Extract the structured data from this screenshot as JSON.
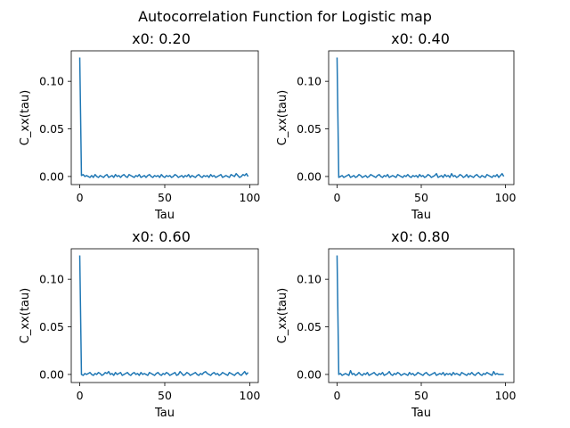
{
  "figure": {
    "suptitle": "Autocorrelation Function for Logistic map"
  },
  "chart_data": [
    {
      "type": "line",
      "title": "x0: 0.20",
      "xlabel": "Tau",
      "ylabel": "C_xx(tau)",
      "xlim": [
        -5,
        105
      ],
      "ylim": [
        -0.0085,
        0.132
      ],
      "xticks": [
        0,
        50,
        100
      ],
      "xtick_labels": [
        "0",
        "50",
        "100"
      ],
      "yticks": [
        0.0,
        0.05,
        0.1
      ],
      "ytick_labels": [
        "0.00",
        "0.05",
        "0.10"
      ],
      "grid": false,
      "series_color": "#1f77b4",
      "series": [
        {
          "x": [
            0,
            1,
            2,
            3,
            4,
            5,
            6,
            7,
            8,
            9,
            10,
            11,
            12,
            13,
            14,
            15,
            16,
            17,
            18,
            19,
            20,
            21,
            22,
            23,
            24,
            25,
            26,
            27,
            28,
            29,
            30,
            31,
            32,
            33,
            34,
            35,
            36,
            37,
            38,
            39,
            40,
            41,
            42,
            43,
            44,
            45,
            46,
            47,
            48,
            49,
            50,
            51,
            52,
            53,
            54,
            55,
            56,
            57,
            58,
            59,
            60,
            61,
            62,
            63,
            64,
            65,
            66,
            67,
            68,
            69,
            70,
            71,
            72,
            73,
            74,
            75,
            76,
            77,
            78,
            79,
            80,
            81,
            82,
            83,
            84,
            85,
            86,
            87,
            88,
            89,
            90,
            91,
            92,
            93,
            94,
            95,
            96,
            97,
            98,
            99
          ],
          "values": [
            0.125,
            0.001,
            0.002,
            0.0,
            0.001,
            0.0,
            -0.001,
            0.001,
            -0.001,
            0.002,
            0.0,
            -0.001,
            0.001,
            0.0,
            -0.001,
            0.001,
            0.002,
            -0.001,
            0.0,
            0.001,
            -0.001,
            0.002,
            0.0,
            0.001,
            -0.001,
            0.001,
            0.002,
            0.0,
            -0.001,
            0.002,
            0.001,
            0.0,
            -0.001,
            0.001,
            0.0,
            0.002,
            -0.001,
            0.0,
            0.001,
            -0.001,
            0.001,
            0.002,
            0.0,
            -0.001,
            0.001,
            0.0,
            0.001,
            -0.001,
            0.002,
            0.0,
            -0.001,
            0.001,
            0.0,
            0.001,
            -0.001,
            0.0,
            0.002,
            0.001,
            -0.001,
            0.0,
            0.001,
            -0.001,
            0.001,
            0.0,
            0.002,
            -0.001,
            0.001,
            0.0,
            -0.001,
            0.001,
            0.002,
            0.0,
            -0.001,
            0.001,
            0.0,
            0.001,
            -0.001,
            0.002,
            0.0,
            0.001,
            -0.001,
            0.0,
            0.001,
            0.002,
            -0.001,
            0.0,
            0.001,
            0.0,
            -0.001,
            0.002,
            0.001,
            0.0,
            0.003,
            0.001,
            -0.001,
            0.0,
            0.002,
            0.001,
            0.003,
            0.0
          ]
        }
      ]
    },
    {
      "type": "line",
      "title": "x0: 0.40",
      "xlabel": "Tau",
      "ylabel": "C_xx(tau)",
      "xlim": [
        -5,
        105
      ],
      "ylim": [
        -0.0085,
        0.132
      ],
      "xticks": [
        0,
        50,
        100
      ],
      "xtick_labels": [
        "0",
        "50",
        "100"
      ],
      "yticks": [
        0.0,
        0.05,
        0.1
      ],
      "ytick_labels": [
        "0.00",
        "0.05",
        "0.10"
      ],
      "grid": false,
      "series_color": "#1f77b4",
      "series": [
        {
          "x": [
            0,
            1,
            2,
            3,
            4,
            5,
            6,
            7,
            8,
            9,
            10,
            11,
            12,
            13,
            14,
            15,
            16,
            17,
            18,
            19,
            20,
            21,
            22,
            23,
            24,
            25,
            26,
            27,
            28,
            29,
            30,
            31,
            32,
            33,
            34,
            35,
            36,
            37,
            38,
            39,
            40,
            41,
            42,
            43,
            44,
            45,
            46,
            47,
            48,
            49,
            50,
            51,
            52,
            53,
            54,
            55,
            56,
            57,
            58,
            59,
            60,
            61,
            62,
            63,
            64,
            65,
            66,
            67,
            68,
            69,
            70,
            71,
            72,
            73,
            74,
            75,
            76,
            77,
            78,
            79,
            80,
            81,
            82,
            83,
            84,
            85,
            86,
            87,
            88,
            89,
            90,
            91,
            92,
            93,
            94,
            95,
            96,
            97,
            98,
            99
          ],
          "values": [
            0.125,
            -0.001,
            0.0,
            0.001,
            -0.001,
            0.0,
            0.001,
            0.002,
            -0.001,
            0.0,
            0.001,
            -0.001,
            0.0,
            0.002,
            0.001,
            -0.001,
            0.0,
            0.001,
            -0.001,
            0.0,
            0.002,
            0.001,
            0.0,
            -0.001,
            0.001,
            0.002,
            0.0,
            -0.001,
            0.001,
            0.0,
            0.002,
            -0.001,
            0.0,
            0.001,
            0.0,
            -0.001,
            0.002,
            0.001,
            0.0,
            -0.001,
            0.001,
            0.0,
            0.002,
            0.0,
            -0.001,
            0.001,
            0.0,
            0.001,
            -0.001,
            0.002,
            0.0,
            0.001,
            -0.001,
            0.0,
            0.002,
            0.001,
            -0.001,
            0.0,
            0.001,
            0.003,
            -0.001,
            0.0,
            0.001,
            -0.001,
            0.002,
            0.0,
            0.001,
            -0.001,
            0.003,
            0.0,
            0.001,
            -0.001,
            0.0,
            0.002,
            0.001,
            -0.001,
            0.0,
            0.002,
            -0.001,
            0.001,
            0.0,
            -0.001,
            0.001,
            0.002,
            0.0,
            -0.001,
            0.001,
            0.0,
            -0.001,
            0.002,
            0.001,
            0.0,
            -0.001,
            0.001,
            0.0,
            0.002,
            -0.001,
            0.001,
            0.003,
            0.0
          ]
        }
      ]
    },
    {
      "type": "line",
      "title": "x0: 0.60",
      "xlabel": "Tau",
      "ylabel": "C_xx(tau)",
      "xlim": [
        -5,
        105
      ],
      "ylim": [
        -0.0085,
        0.132
      ],
      "xticks": [
        0,
        50,
        100
      ],
      "xtick_labels": [
        "0",
        "50",
        "100"
      ],
      "yticks": [
        0.0,
        0.05,
        0.1
      ],
      "ytick_labels": [
        "0.00",
        "0.05",
        "0.10"
      ],
      "grid": false,
      "series_color": "#1f77b4",
      "series": [
        {
          "x": [
            0,
            1,
            2,
            3,
            4,
            5,
            6,
            7,
            8,
            9,
            10,
            11,
            12,
            13,
            14,
            15,
            16,
            17,
            18,
            19,
            20,
            21,
            22,
            23,
            24,
            25,
            26,
            27,
            28,
            29,
            30,
            31,
            32,
            33,
            34,
            35,
            36,
            37,
            38,
            39,
            40,
            41,
            42,
            43,
            44,
            45,
            46,
            47,
            48,
            49,
            50,
            51,
            52,
            53,
            54,
            55,
            56,
            57,
            58,
            59,
            60,
            61,
            62,
            63,
            64,
            65,
            66,
            67,
            68,
            69,
            70,
            71,
            72,
            73,
            74,
            75,
            76,
            77,
            78,
            79,
            80,
            81,
            82,
            83,
            84,
            85,
            86,
            87,
            88,
            89,
            90,
            91,
            92,
            93,
            94,
            95,
            96,
            97,
            98,
            99
          ],
          "values": [
            0.125,
            0.0,
            -0.001,
            0.001,
            0.0,
            0.001,
            0.002,
            0.0,
            -0.001,
            0.001,
            0.0,
            0.002,
            0.001,
            -0.001,
            0.0,
            0.002,
            0.001,
            0.003,
            0.0,
            0.001,
            -0.001,
            0.002,
            0.0,
            0.001,
            0.002,
            -0.001,
            0.0,
            0.001,
            0.002,
            0.0,
            -0.001,
            0.001,
            0.002,
            0.0,
            0.001,
            -0.001,
            0.002,
            0.0,
            0.001,
            0.0,
            -0.001,
            0.002,
            0.001,
            0.0,
            -0.001,
            0.001,
            0.002,
            0.0,
            -0.001,
            0.001,
            0.0,
            0.002,
            0.001,
            -0.001,
            0.0,
            0.001,
            0.002,
            -0.001,
            0.0,
            0.003,
            0.001,
            -0.001,
            0.0,
            0.002,
            0.001,
            -0.001,
            0.0,
            0.001,
            0.002,
            0.0,
            -0.001,
            0.001,
            0.0,
            0.002,
            0.003,
            0.001,
            0.0,
            -0.001,
            0.001,
            0.002,
            0.0,
            0.001,
            -0.001,
            0.0,
            0.002,
            0.001,
            0.0,
            -0.001,
            0.002,
            0.001,
            0.0,
            -0.001,
            0.001,
            0.002,
            0.0,
            -0.001,
            0.001,
            0.003,
            0.0,
            0.002
          ]
        }
      ]
    },
    {
      "type": "line",
      "title": "x0: 0.80",
      "xlabel": "Tau",
      "ylabel": "C_xx(tau)",
      "xlim": [
        -5,
        105
      ],
      "ylim": [
        -0.0085,
        0.132
      ],
      "xticks": [
        0,
        50,
        100
      ],
      "xtick_labels": [
        "0",
        "50",
        "100"
      ],
      "yticks": [
        0.0,
        0.05,
        0.1
      ],
      "ytick_labels": [
        "0.00",
        "0.05",
        "0.10"
      ],
      "grid": false,
      "series_color": "#1f77b4",
      "series": [
        {
          "x": [
            0,
            1,
            2,
            3,
            4,
            5,
            6,
            7,
            8,
            9,
            10,
            11,
            12,
            13,
            14,
            15,
            16,
            17,
            18,
            19,
            20,
            21,
            22,
            23,
            24,
            25,
            26,
            27,
            28,
            29,
            30,
            31,
            32,
            33,
            34,
            35,
            36,
            37,
            38,
            39,
            40,
            41,
            42,
            43,
            44,
            45,
            46,
            47,
            48,
            49,
            50,
            51,
            52,
            53,
            54,
            55,
            56,
            57,
            58,
            59,
            60,
            61,
            62,
            63,
            64,
            65,
            66,
            67,
            68,
            69,
            70,
            71,
            72,
            73,
            74,
            75,
            76,
            77,
            78,
            79,
            80,
            81,
            82,
            83,
            84,
            85,
            86,
            87,
            88,
            89,
            90,
            91,
            92,
            93,
            94,
            95,
            96,
            97,
            98,
            99
          ],
          "values": [
            0.125,
            0.0,
            0.001,
            -0.001,
            0.0,
            0.001,
            0.0,
            -0.001,
            0.004,
            0.0,
            0.001,
            -0.001,
            0.0,
            0.002,
            0.0,
            -0.001,
            0.001,
            0.0,
            0.002,
            -0.001,
            0.0,
            0.001,
            0.002,
            0.0,
            -0.001,
            0.001,
            0.0,
            0.002,
            -0.001,
            0.0,
            0.001,
            0.003,
            0.0,
            -0.001,
            0.001,
            0.0,
            0.002,
            0.001,
            -0.001,
            0.0,
            0.001,
            0.0,
            -0.001,
            0.002,
            0.0,
            0.001,
            -0.001,
            0.0,
            0.002,
            0.001,
            0.0,
            -0.001,
            0.001,
            0.002,
            0.0,
            -0.001,
            0.0,
            0.001,
            0.002,
            -0.001,
            0.0,
            0.001,
            0.0,
            0.002,
            -0.001,
            0.001,
            0.0,
            0.001,
            -0.001,
            0.002,
            0.0,
            0.001,
            0.0,
            -0.001,
            0.002,
            0.001,
            0.0,
            -0.001,
            0.001,
            0.0,
            0.002,
            0.0,
            -0.001,
            0.001,
            0.002,
            0.0,
            -0.001,
            0.001,
            0.0,
            0.002,
            0.001,
            0.0,
            -0.001,
            0.003,
            0.0,
            0.001,
            0.0,
            0.0,
            0.0,
            0.0
          ]
        }
      ]
    }
  ]
}
